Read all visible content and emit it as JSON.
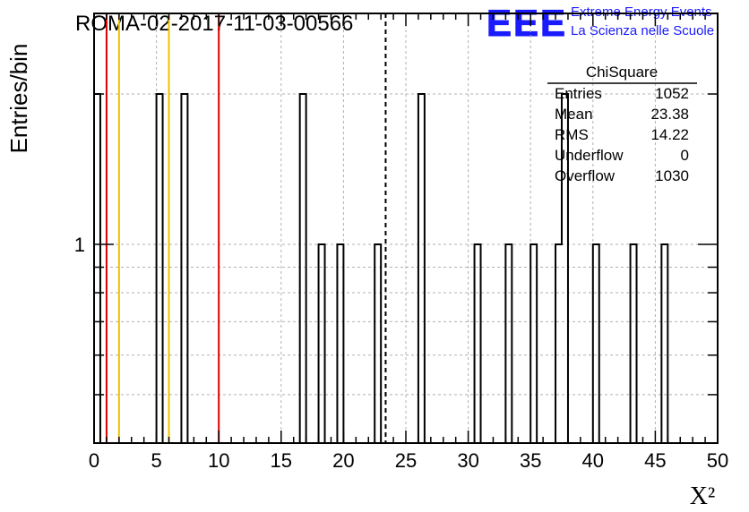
{
  "header": {
    "run_title": "ROMA-02-2017-11-03-00566",
    "logo_text": "EEE",
    "logo_line1": "Extreme Energy Events",
    "logo_line2": "La Scienza nelle Scuole"
  },
  "stats_box": {
    "title": "ChiSquare",
    "rows": [
      {
        "label": "Entries",
        "value": "1052"
      },
      {
        "label": "Mean",
        "value": "23.38"
      },
      {
        "label": "RMS",
        "value": "14.22"
      },
      {
        "label": "Underflow",
        "value": "0"
      },
      {
        "label": "Overflow",
        "value": "1030"
      }
    ]
  },
  "chart_data": {
    "type": "bar",
    "histogram": "step",
    "xlabel": "X²",
    "ylabel": "Entries/bin",
    "xlim": [
      0,
      50
    ],
    "ylim": [
      0.4,
      2.9
    ],
    "y_scale": "log",
    "grid": true,
    "x_ticks": [
      0,
      5,
      10,
      15,
      20,
      25,
      30,
      35,
      40,
      45,
      50
    ],
    "y_tick_labels": [
      {
        "value": 1,
        "label": "1"
      }
    ],
    "bin_width": 0.5,
    "bins": [
      {
        "x": 0.0,
        "count": 2
      },
      {
        "x": 5.0,
        "count": 2
      },
      {
        "x": 7.0,
        "count": 2
      },
      {
        "x": 16.5,
        "count": 2
      },
      {
        "x": 18.0,
        "count": 1
      },
      {
        "x": 19.5,
        "count": 1
      },
      {
        "x": 22.5,
        "count": 1
      },
      {
        "x": 26.0,
        "count": 2
      },
      {
        "x": 30.5,
        "count": 1
      },
      {
        "x": 33.0,
        "count": 1
      },
      {
        "x": 35.0,
        "count": 1
      },
      {
        "x": 37.0,
        "count": 1
      },
      {
        "x": 37.5,
        "count": 2
      },
      {
        "x": 40.0,
        "count": 1
      },
      {
        "x": 43.0,
        "count": 1
      },
      {
        "x": 45.5,
        "count": 1
      }
    ],
    "reference_lines": [
      {
        "x": 1.0,
        "color": "#dd0000",
        "style": "solid"
      },
      {
        "x": 2.0,
        "color": "#f0c000",
        "style": "solid"
      },
      {
        "x": 6.0,
        "color": "#f0c000",
        "style": "solid"
      },
      {
        "x": 10.0,
        "color": "#dd0000",
        "style": "solid"
      },
      {
        "x": 23.38,
        "color": "#000000",
        "style": "dashed"
      }
    ]
  },
  "colors": {
    "logo_blue": "#1a1aff",
    "grid": "#b0b0b0",
    "histogram": "#000000"
  }
}
